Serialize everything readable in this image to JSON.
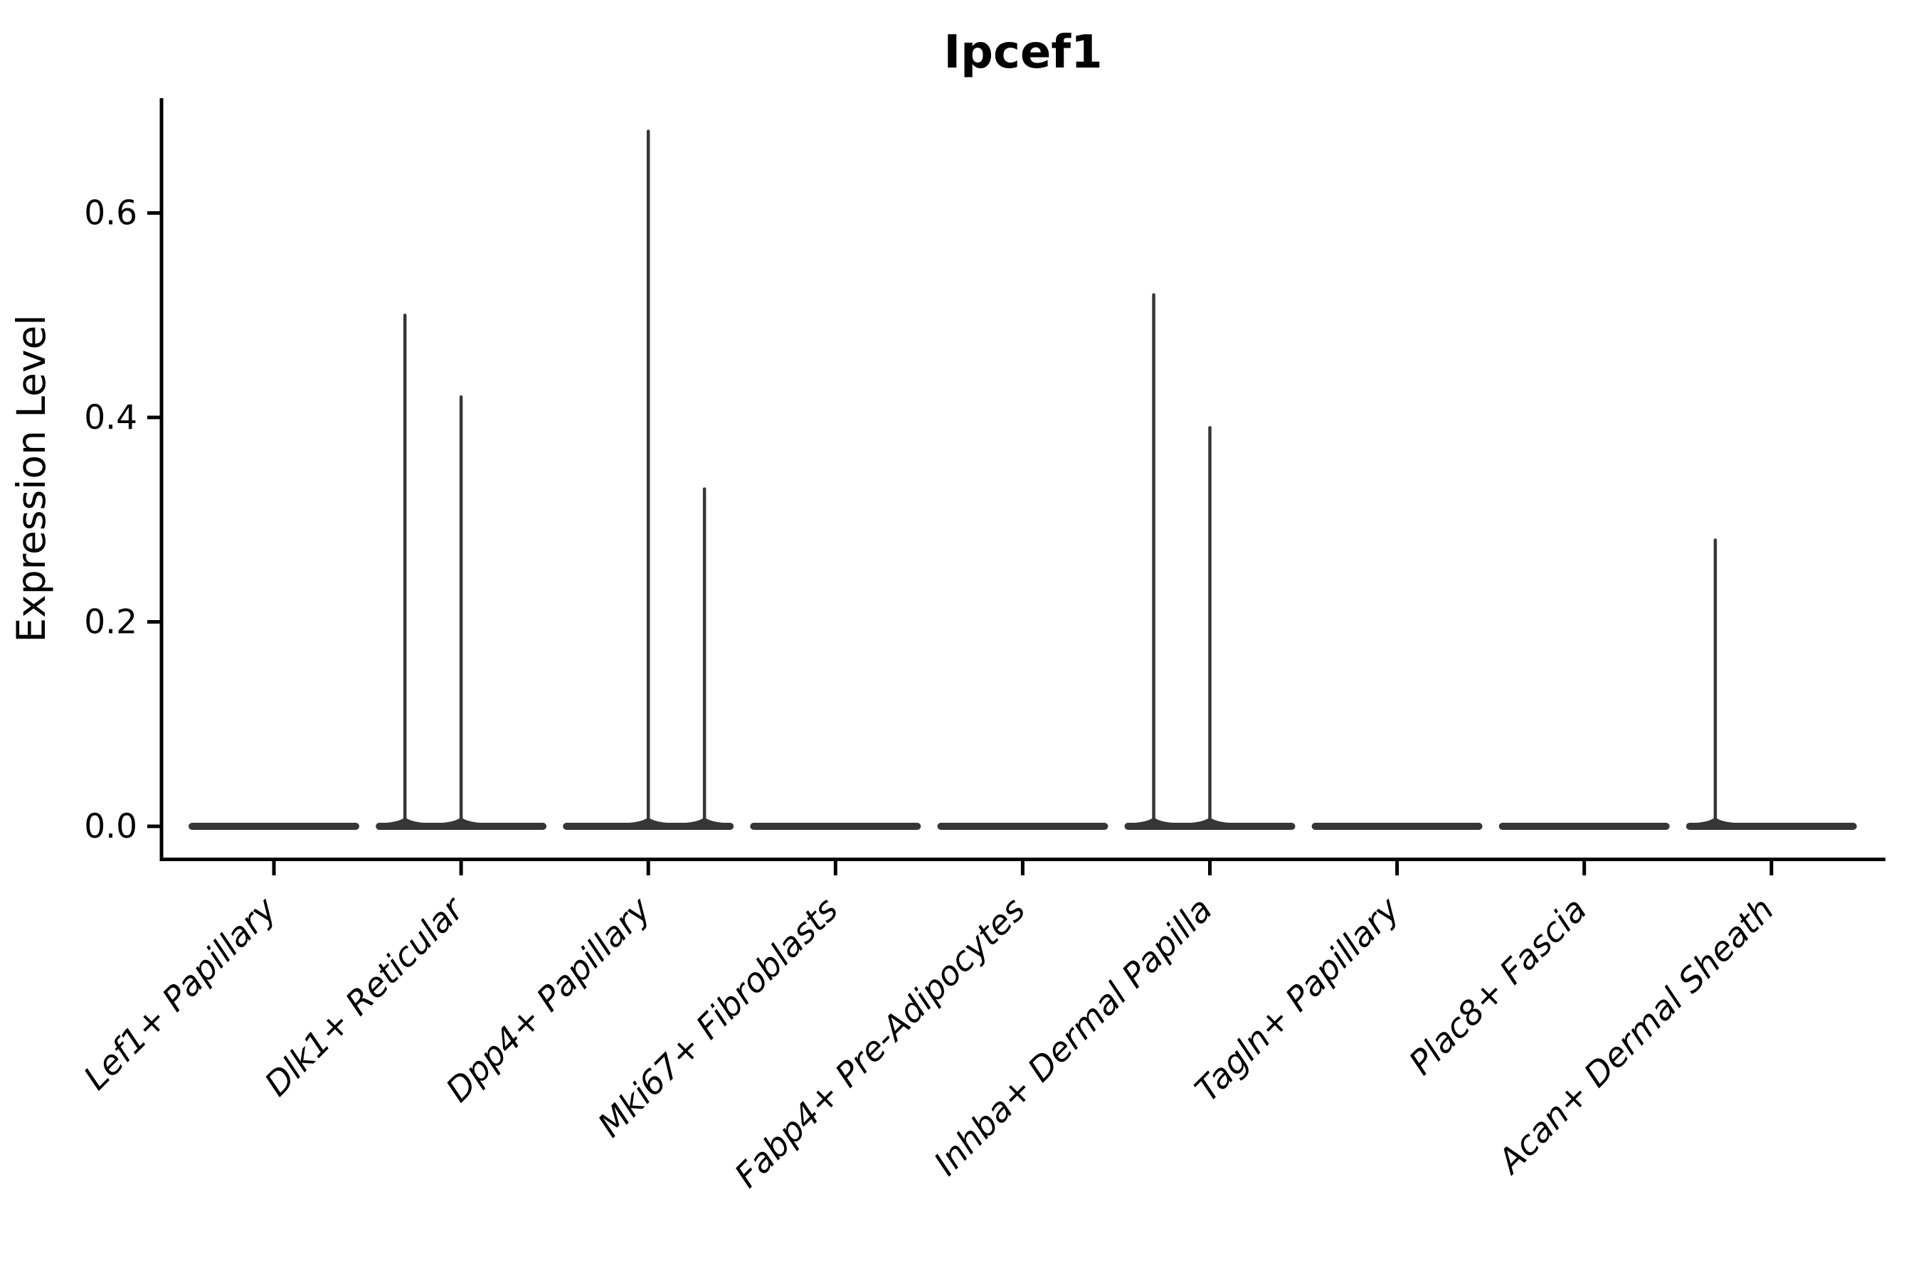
{
  "chart_data": {
    "type": "violin",
    "title": "Ipcef1",
    "xlabel": "",
    "ylabel": "Expression Level",
    "ylim": [
      0,
      0.71
    ],
    "y_tick_values": [
      0.0,
      0.2,
      0.4,
      0.6
    ],
    "y_tick_labels": [
      "0.0",
      "0.2",
      "0.4",
      "0.6"
    ],
    "legend": "none",
    "grid": false,
    "categories": [
      "Lef1+ Papillary",
      "Dlk1+ Reticular",
      "Dpp4+ Papillary",
      "Mki67+ Fibroblasts",
      "Fabp4+ Pre-Adipocytes",
      "Inhba+ Dermal Papilla",
      "Tagln+ Papillary",
      "Plac8+ Fascia",
      "Acan+ Dermal Sheath"
    ],
    "violins": [
      {
        "category": "Lef1+ Papillary",
        "baseline_value": 0.0,
        "spikes": []
      },
      {
        "category": "Dlk1+ Reticular",
        "baseline_value": 0.0,
        "spikes": [
          {
            "offset": -0.3,
            "value": 0.5
          },
          {
            "offset": 0.0,
            "value": 0.42
          }
        ]
      },
      {
        "category": "Dpp4+ Papillary",
        "baseline_value": 0.0,
        "spikes": [
          {
            "offset": 0.0,
            "value": 0.68
          },
          {
            "offset": 0.3,
            "value": 0.33
          }
        ]
      },
      {
        "category": "Mki67+ Fibroblasts",
        "baseline_value": 0.0,
        "spikes": []
      },
      {
        "category": "Fabp4+ Pre-Adipocytes",
        "baseline_value": 0.0,
        "spikes": []
      },
      {
        "category": "Inhba+ Dermal Papilla",
        "baseline_value": 0.0,
        "spikes": [
          {
            "offset": -0.3,
            "value": 0.52
          },
          {
            "offset": 0.0,
            "value": 0.39
          }
        ]
      },
      {
        "category": "Tagln+ Papillary",
        "baseline_value": 0.0,
        "spikes": []
      },
      {
        "category": "Plac8+ Fascia",
        "baseline_value": 0.0,
        "spikes": []
      },
      {
        "category": "Acan+ Dermal Sheath",
        "baseline_value": 0.0,
        "spikes": [
          {
            "offset": -0.3,
            "value": 0.28
          }
        ]
      }
    ],
    "colors": {
      "violin": "#363636",
      "axis": "#000000",
      "text": "#000000",
      "background": "#ffffff"
    }
  }
}
